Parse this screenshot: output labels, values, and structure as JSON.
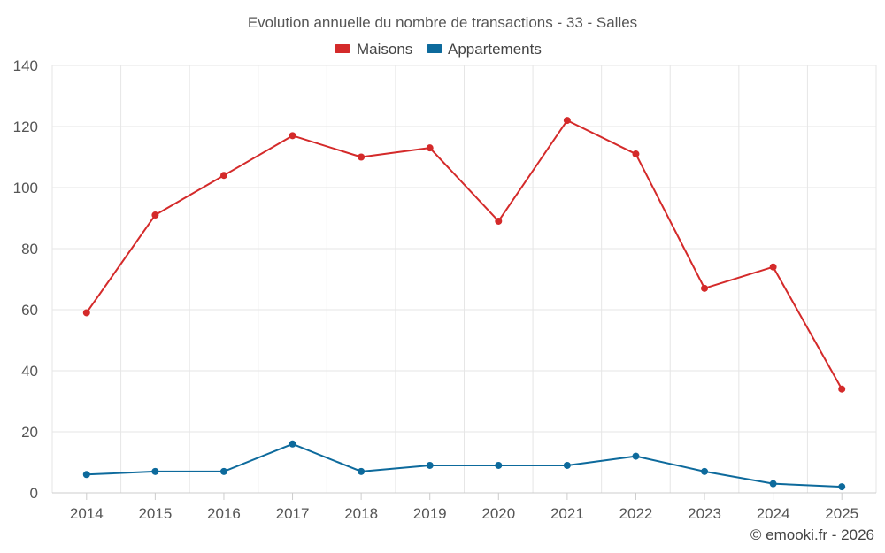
{
  "chart_data": {
    "type": "line",
    "title": "Evolution annuelle du nombre de transactions - 33 - Salles",
    "categories": [
      "2014",
      "2015",
      "2016",
      "2017",
      "2018",
      "2019",
      "2020",
      "2021",
      "2022",
      "2023",
      "2024",
      "2025"
    ],
    "series": [
      {
        "name": "Maisons",
        "color": "#d42a2a",
        "values": [
          59,
          91,
          104,
          117,
          110,
          113,
          89,
          122,
          111,
          67,
          74,
          34
        ]
      },
      {
        "name": "Appartements",
        "color": "#0d6a9c",
        "values": [
          6,
          7,
          7,
          16,
          7,
          9,
          9,
          9,
          12,
          7,
          3,
          2
        ]
      }
    ],
    "ylim": [
      0,
      140
    ],
    "yticks": [
      "0",
      "20",
      "40",
      "60",
      "80",
      "100",
      "120",
      "140"
    ],
    "ytick_values": [
      0,
      20,
      40,
      60,
      80,
      100,
      120,
      140
    ],
    "grid": true,
    "legend_position": "top-center",
    "xlabel": "",
    "ylabel": ""
  },
  "credit": "© emooki.fr - 2026"
}
